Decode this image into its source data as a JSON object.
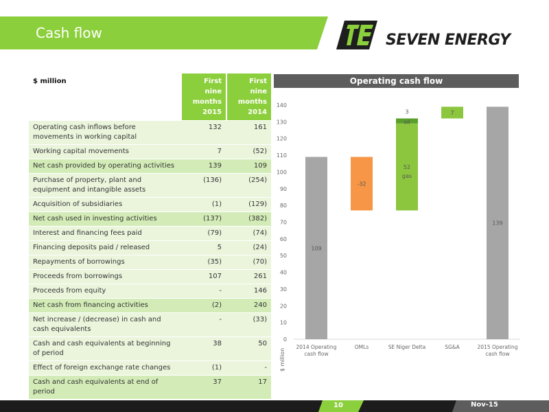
{
  "slide": {
    "title": "Cash flow",
    "page_number": "10",
    "date": "Nov-15"
  },
  "logo": {
    "name": "SEVEN ENERGY",
    "icon": "seven-energy-logo-icon"
  },
  "colors": {
    "accent_green": "#8ccf3c",
    "row_highlight": "#d3ecb7",
    "row_plain": "#eaf5dc",
    "bar_grey": "#a6a6a6",
    "bar_orange": "#f79646",
    "bar_green": "#8cc63f",
    "bar_dark_green": "#5a9e2c",
    "footer": "#1c1c1c"
  },
  "table": {
    "unit_label": "$ million",
    "col1_header": "First nine months 2015",
    "col2_header": "First nine months 2014",
    "rows": [
      {
        "label": "Operating cash inflows before movements in working capital",
        "v2015": "132",
        "v2014": "161",
        "highlight": false
      },
      {
        "label": "Working capital movements",
        "v2015": "7",
        "v2014": "(52)",
        "highlight": false
      },
      {
        "label": "Net cash provided by operating activities",
        "v2015": "139",
        "v2014": "109",
        "highlight": true
      },
      {
        "label": "Purchase of property, plant and equipment and intangible assets",
        "v2015": "(136)",
        "v2014": "(254)",
        "highlight": false
      },
      {
        "label": "Acquisition of subsidiaries",
        "v2015": "(1)",
        "v2014": "(129)",
        "highlight": false
      },
      {
        "label": "Net cash used in investing activities",
        "v2015": "(137)",
        "v2014": "(382)",
        "highlight": true
      },
      {
        "label": "Interest and financing fees paid",
        "v2015": "(79)",
        "v2014": "(74)",
        "highlight": false
      },
      {
        "label": "Financing deposits paid / released",
        "v2015": "5",
        "v2014": "(24)",
        "highlight": false
      },
      {
        "label": "Repayments of borrowings",
        "v2015": "(35)",
        "v2014": "(70)",
        "highlight": false
      },
      {
        "label": "Proceeds from borrowings",
        "v2015": "107",
        "v2014": "261",
        "highlight": false
      },
      {
        "label": "Proceeds from equity",
        "v2015": "-",
        "v2014": "146",
        "highlight": false
      },
      {
        "label": "Net cash from financing activities",
        "v2015": "(2)",
        "v2014": "240",
        "highlight": true
      },
      {
        "label": "Net increase / (decrease) in cash and cash equivalents",
        "v2015": "-",
        "v2014": "(33)",
        "highlight": false
      },
      {
        "label": "Cash and cash equivalents at beginning of period",
        "v2015": "38",
        "v2014": "50",
        "highlight": false
      },
      {
        "label": "Effect of foreign exchange rate changes",
        "v2015": "(1)",
        "v2014": "-",
        "highlight": false
      },
      {
        "label": "Cash and cash equivalents at end of period",
        "v2015": "37",
        "v2014": "17",
        "highlight": true
      }
    ]
  },
  "chart_data": {
    "type": "bar",
    "subtype": "waterfall",
    "title": "Operating cash flow",
    "ylabel": "$ million",
    "ylim": [
      0,
      140
    ],
    "yticks": [
      0,
      10,
      20,
      30,
      40,
      50,
      60,
      70,
      80,
      90,
      100,
      110,
      120,
      130,
      140
    ],
    "grid": false,
    "categories": [
      "2014 Operating cash flow",
      "OMLs",
      "SE Niger Delta",
      "SG&A",
      "2015 Operating cash flow"
    ],
    "bars": [
      {
        "category": "2014 Operating cash flow",
        "base": 0,
        "top": 109,
        "label": "109",
        "color": "#a6a6a6"
      },
      {
        "category": "OMLs",
        "base": 77,
        "top": 109,
        "label": "-32",
        "color": "#f79646"
      },
      {
        "category": "SE Niger Delta",
        "base": 77,
        "top": 129,
        "label": "52",
        "sublabel": "gas",
        "color": "#8cc63f"
      },
      {
        "category": "SE Niger Delta",
        "base": 129,
        "top": 132,
        "label": "3",
        "sublabel": "oil",
        "color": "#5a9e2c"
      },
      {
        "category": "SG&A",
        "base": 132,
        "top": 139,
        "label": "7",
        "color": "#8cc63f"
      },
      {
        "category": "2015 Operating cash flow",
        "base": 0,
        "top": 139,
        "label": "139",
        "color": "#a6a6a6"
      }
    ]
  }
}
